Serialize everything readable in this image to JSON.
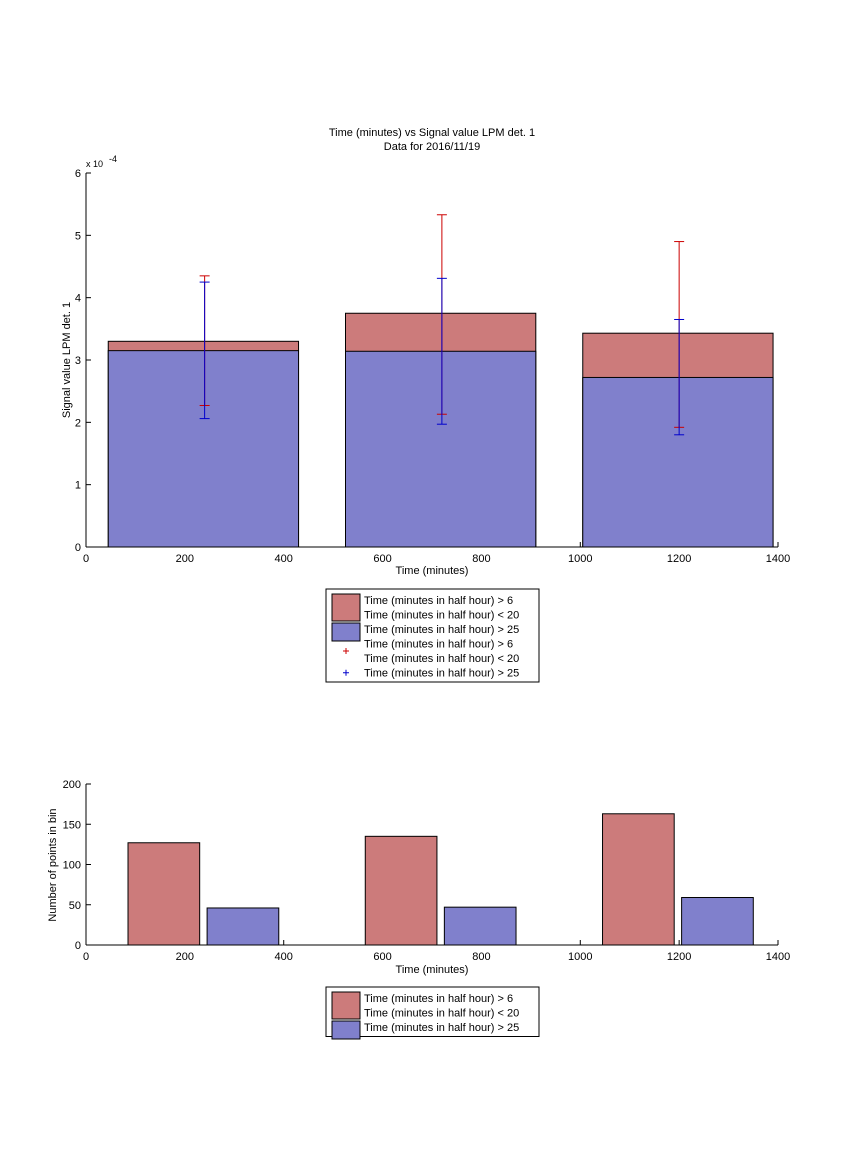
{
  "chart_data": [
    {
      "type": "bar",
      "title": "Time (minutes) vs Signal value LPM det. 1",
      "subtitle": "Data for 2016/11/19",
      "xlabel": "Time (minutes)",
      "ylabel": "Signal value LPM det. 1",
      "y_exponent_label": "x 10",
      "y_exponent_power": "-4",
      "xlim": [
        0,
        1400
      ],
      "ylim": [
        0,
        6
      ],
      "y_scale_factor": 0.0001,
      "xticks": [
        "0",
        "200",
        "400",
        "600",
        "800",
        "1000",
        "1200",
        "1400"
      ],
      "yticks": [
        "0",
        "1",
        "2",
        "3",
        "4",
        "5",
        "6"
      ],
      "bar_x_ranges": [
        [
          45,
          430
        ],
        [
          525,
          910
        ],
        [
          1005,
          1390
        ]
      ],
      "error_bar_x": [
        240,
        720,
        1200
      ],
      "series": [
        {
          "name": "Time (minutes in half hour) > 6\nTime (minutes in half hour) < 20",
          "color": "#cc7b7b",
          "values": [
            3.3,
            3.75,
            3.43
          ]
        },
        {
          "name": "Time (minutes in half hour) > 25",
          "color": "#8080cc",
          "values": [
            3.15,
            3.14,
            2.72
          ]
        }
      ],
      "error_bars": [
        {
          "name": "Time (minutes in half hour) > 6\nTime (minutes in half hour) < 20",
          "color": "#cc0000",
          "upper": [
            4.35,
            5.33,
            4.9
          ],
          "lower": [
            2.27,
            2.13,
            1.92
          ]
        },
        {
          "name": "Time (minutes in half hour) > 25",
          "color": "#0000cc",
          "upper": [
            4.25,
            4.31,
            3.65
          ],
          "lower": [
            2.06,
            1.97,
            1.8
          ]
        }
      ],
      "legend": [
        {
          "kind": "patch",
          "color": "#cc7b7b",
          "lines": [
            "Time (minutes in half hour) > 6",
            "Time (minutes in half hour) < 20"
          ]
        },
        {
          "kind": "patch",
          "color": "#8080cc",
          "lines": [
            "Time (minutes in half hour) > 25"
          ]
        },
        {
          "kind": "marker",
          "color": "#cc0000",
          "lines": [
            "Time (minutes in half hour) > 6",
            "Time (minutes in half hour) < 20"
          ]
        },
        {
          "kind": "marker",
          "color": "#0000cc",
          "lines": [
            "Time (minutes in half hour) > 25"
          ]
        }
      ],
      "legend_position": "below"
    },
    {
      "type": "bar",
      "title": "",
      "xlabel": "Time (minutes)",
      "ylabel": "Number of points in bin",
      "xlim": [
        0,
        1400
      ],
      "ylim": [
        0,
        200
      ],
      "xticks": [
        "0",
        "200",
        "400",
        "600",
        "800",
        "1000",
        "1200",
        "1400"
      ],
      "yticks": [
        "0",
        "50",
        "100",
        "150",
        "200"
      ],
      "bars": [
        {
          "series": 0,
          "x_range": [
            85,
            230
          ],
          "value": 127
        },
        {
          "series": 1,
          "x_range": [
            245,
            390
          ],
          "value": 46
        },
        {
          "series": 0,
          "x_range": [
            565,
            710
          ],
          "value": 135
        },
        {
          "series": 1,
          "x_range": [
            725,
            870
          ],
          "value": 47
        },
        {
          "series": 0,
          "x_range": [
            1045,
            1190
          ],
          "value": 163
        },
        {
          "series": 1,
          "x_range": [
            1205,
            1350
          ],
          "value": 59
        }
      ],
      "series": [
        {
          "name": "Time (minutes in half hour) > 6\nTime (minutes in half hour) < 20",
          "color": "#cc7b7b"
        },
        {
          "name": "Time (minutes in half hour) > 25",
          "color": "#8080cc"
        }
      ],
      "legend": [
        {
          "kind": "patch",
          "color": "#cc7b7b",
          "lines": [
            "Time (minutes in half hour) > 6",
            "Time (minutes in half hour) < 20"
          ]
        },
        {
          "kind": "patch",
          "color": "#8080cc",
          "lines": [
            "Time (minutes in half hour) > 25"
          ]
        }
      ],
      "legend_position": "below"
    }
  ]
}
